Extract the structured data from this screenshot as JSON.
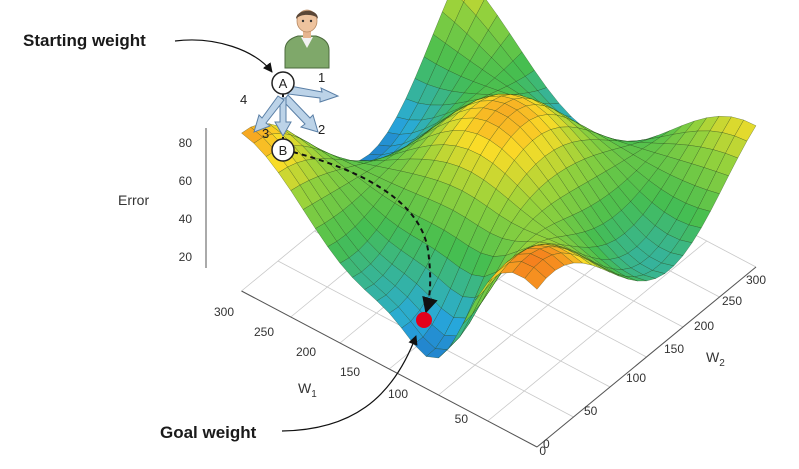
{
  "callouts": {
    "starting_weight": "Starting weight",
    "goal_weight": "Goal weight"
  },
  "axes": {
    "z_label": "Error",
    "w1_label": "W",
    "w1_sub": "1",
    "w2_label": "W",
    "w2_sub": "2",
    "z_ticks": [
      "20",
      "40",
      "60",
      "80"
    ],
    "w1_ticks": [
      "0",
      "50",
      "100",
      "150",
      "200",
      "250",
      "300"
    ],
    "w2_ticks": [
      "0",
      "50",
      "100",
      "150",
      "200",
      "250",
      "300"
    ]
  },
  "nodes": {
    "start": "A",
    "next": "B"
  },
  "directions": [
    "1",
    "2",
    "3",
    "4"
  ],
  "colors": {
    "arrow_fill": "#bcd3e8",
    "arrow_stroke": "#5a7fa6",
    "goal_dot": "#e3001b",
    "path": "#111111"
  },
  "icons": {
    "person": "person-icon"
  }
}
